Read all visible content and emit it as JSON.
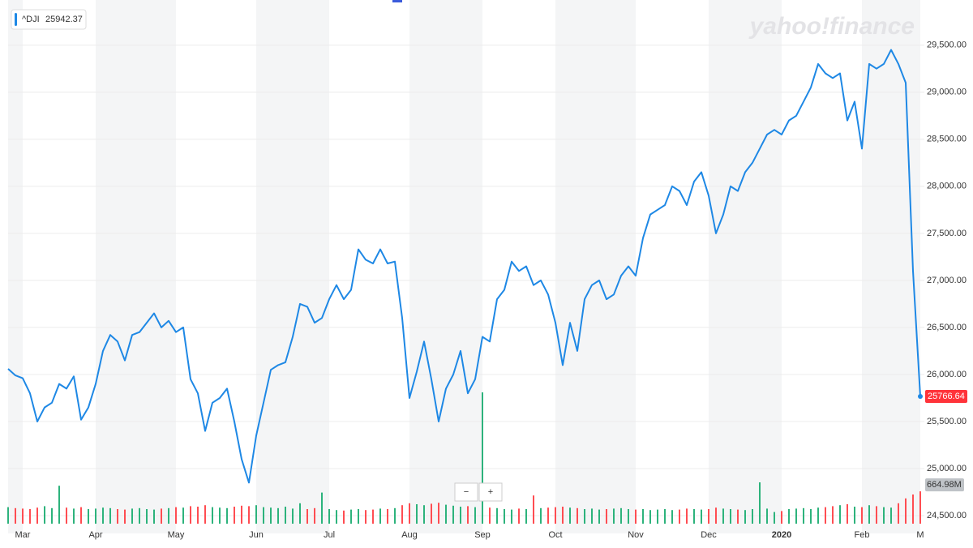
{
  "chart_data": {
    "type": "line",
    "brand": "yahoo!finance",
    "legend": {
      "symbol": "^DJI",
      "value": "25942.37"
    },
    "zoom_controls": [
      "−",
      "+"
    ],
    "categories": [
      null,
      null,
      "Mar",
      null,
      null,
      null,
      null,
      null,
      null,
      null,
      null,
      null,
      "Apr",
      null,
      null,
      null,
      null,
      null,
      null,
      null,
      null,
      null,
      null,
      "May",
      null,
      null,
      null,
      null,
      null,
      null,
      null,
      null,
      null,
      null,
      "Jun",
      null,
      null,
      null,
      null,
      null,
      null,
      null,
      null,
      null,
      "Jul",
      null,
      null,
      null,
      null,
      null,
      null,
      null,
      null,
      null,
      null,
      "Aug",
      null,
      null,
      null,
      null,
      null,
      null,
      null,
      null,
      null,
      "Sep",
      null,
      null,
      null,
      null,
      null,
      null,
      null,
      null,
      null,
      "Oct",
      null,
      null,
      null,
      null,
      null,
      null,
      null,
      null,
      null,
      null,
      "Nov",
      null,
      null,
      null,
      null,
      null,
      null,
      null,
      null,
      null,
      "Dec",
      null,
      null,
      null,
      null,
      null,
      null,
      null,
      null,
      null,
      "2020",
      null,
      null,
      null,
      null,
      null,
      null,
      null,
      null,
      null,
      null,
      "Feb",
      null,
      null,
      null,
      null,
      null,
      null,
      null,
      "M"
    ],
    "series": [
      {
        "name": "^DJI",
        "color": "#1e88e5",
        "values": [
          26060,
          25990,
          25960,
          25800,
          25500,
          25650,
          25700,
          25900,
          25850,
          25980,
          25520,
          25650,
          25900,
          26250,
          26420,
          26350,
          26150,
          26420,
          26450,
          26550,
          26650,
          26500,
          26570,
          26450,
          26500,
          25950,
          25800,
          25400,
          25700,
          25750,
          25850,
          25500,
          25100,
          24850,
          25350,
          25700,
          26050,
          26100,
          26130,
          26400,
          26750,
          26720,
          26550,
          26600,
          26800,
          26950,
          26800,
          26900,
          27330,
          27220,
          27180,
          27330,
          27180,
          27200,
          26600,
          25750,
          26030,
          26350,
          25950,
          25500,
          25850,
          26000,
          26250,
          25800,
          25950,
          26400,
          26350,
          26800,
          26900,
          27200,
          27100,
          27150,
          26950,
          27000,
          26850,
          26550,
          26100,
          26550,
          26250,
          26800,
          26950,
          27000,
          26800,
          26850,
          27050,
          27150,
          27050,
          27450,
          27700,
          27750,
          27800,
          28000,
          27950,
          27800,
          28050,
          28150,
          27900,
          27500,
          27700,
          28000,
          27950,
          28150,
          28250,
          28400,
          28550,
          28600,
          28550,
          28700,
          28750,
          28900,
          29050,
          29300,
          29200,
          29150,
          29200,
          28700,
          28900,
          28400,
          29300,
          29250,
          29300,
          29450,
          29300,
          29100,
          27100,
          25766.64
        ]
      }
    ],
    "volume": {
      "name": "Volume",
      "values": [
        340,
        320,
        310,
        300,
        330,
        360,
        320,
        780,
        330,
        310,
        340,
        300,
        310,
        330,
        320,
        300,
        290,
        310,
        320,
        300,
        290,
        310,
        320,
        340,
        330,
        360,
        350,
        380,
        340,
        330,
        320,
        350,
        370,
        360,
        380,
        340,
        330,
        320,
        350,
        310,
        420,
        300,
        320,
        640,
        300,
        280,
        270,
        290,
        300,
        280,
        290,
        310,
        300,
        320,
        380,
        420,
        400,
        380,
        410,
        430,
        390,
        370,
        350,
        360,
        340,
        2700,
        330,
        320,
        300,
        290,
        310,
        300,
        580,
        320,
        330,
        340,
        350,
        330,
        320,
        300,
        310,
        290,
        300,
        310,
        320,
        300,
        290,
        300,
        280,
        290,
        300,
        280,
        290,
        310,
        300,
        290,
        300,
        330,
        310,
        300,
        290,
        280,
        300,
        850,
        310,
        240,
        260,
        300,
        310,
        320,
        300,
        330,
        340,
        360,
        380,
        400,
        350,
        340,
        380,
        360,
        340,
        330,
        420,
        520,
        600,
        664.98
      ],
      "current": {
        "value": 664.98,
        "label": "664.98M"
      },
      "up_color": "#2db37c",
      "down_color": "#ff4d52"
    },
    "ylim": [
      24380,
      29980
    ],
    "yticks": [
      {
        "value": 24500,
        "label": "24,500.00"
      },
      {
        "value": 25000,
        "label": "25,000.00"
      },
      {
        "value": 25500,
        "label": "25,500.00"
      },
      {
        "value": 26000,
        "label": "26,000.00"
      },
      {
        "value": 26500,
        "label": "26,500.00"
      },
      {
        "value": 27000,
        "label": "27,000.00"
      },
      {
        "value": 27500,
        "label": "27,500.00"
      },
      {
        "value": 28000,
        "label": "28,000.00"
      },
      {
        "value": 28500,
        "label": "28,500.00"
      },
      {
        "value": 29000,
        "label": "29,000.00"
      },
      {
        "value": 29500,
        "label": "29,500.00"
      }
    ],
    "grid": true,
    "band_color": "#f4f5f6",
    "price_tag_color": "#ff333a"
  }
}
